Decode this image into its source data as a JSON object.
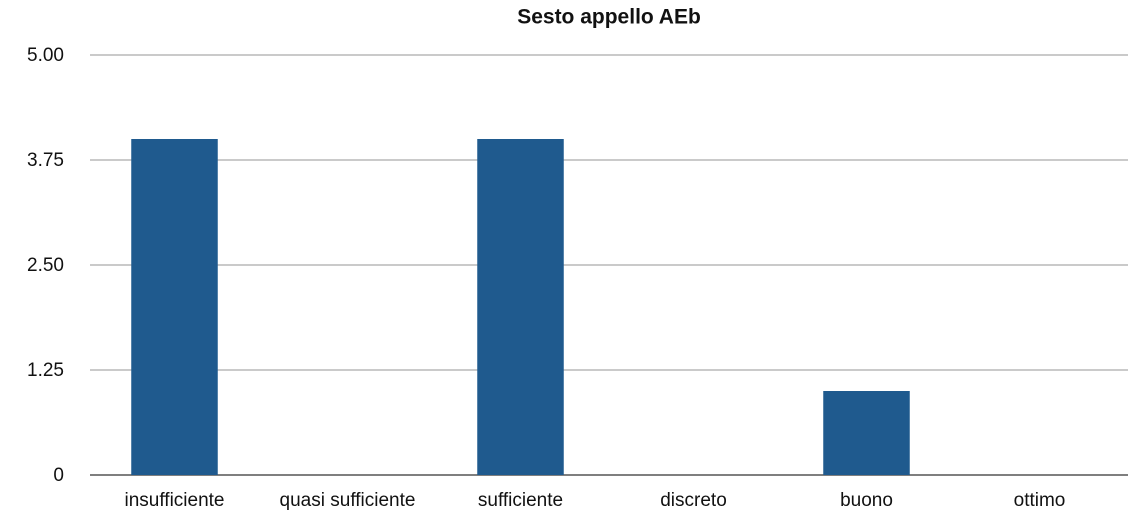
{
  "chart_data": {
    "type": "bar",
    "title": "Sesto appello AEb",
    "categories": [
      "insufficiente",
      "quasi sufficiente",
      "sufficiente",
      "discreto",
      "buono",
      "ottimo"
    ],
    "values": [
      4,
      0,
      4,
      0,
      1,
      0
    ],
    "color": "#1f5a8e",
    "ylim": [
      0,
      5
    ],
    "yticks": [
      0,
      1.25,
      {
        "value": 2.5,
        "label": "2.50"
      },
      {
        "value": 3.75,
        "label": "3.75"
      },
      {
        "value": 5,
        "label": "5.00"
      }
    ],
    "grid": true
  }
}
